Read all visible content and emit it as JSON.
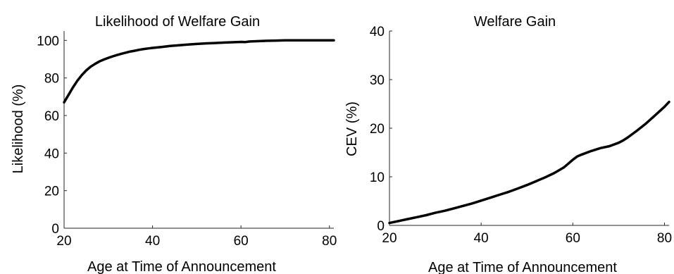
{
  "chart_data": [
    {
      "type": "line",
      "title": "Likelihood of Welfare Gain",
      "xlabel": "Age at Time of Announcement",
      "ylabel": "Likelihood (%)",
      "xlim": [
        20,
        81
      ],
      "ylim": [
        0,
        105
      ],
      "xticks": [
        20,
        40,
        60,
        80
      ],
      "yticks": [
        0,
        20,
        40,
        60,
        80,
        100
      ],
      "grid": false,
      "line_color": "#000000",
      "series": [
        {
          "x": [
            20,
            21,
            22,
            23,
            24,
            25,
            26,
            27,
            28,
            29,
            30,
            31,
            32,
            33,
            34,
            35,
            36,
            37,
            38,
            39,
            40,
            42,
            44,
            46,
            48,
            50,
            52,
            54,
            56,
            58,
            60,
            61,
            62,
            64,
            66,
            68,
            70,
            72,
            74,
            76,
            78,
            80,
            81
          ],
          "y": [
            67,
            71,
            75,
            78.5,
            81.5,
            84,
            86,
            87.5,
            88.8,
            89.8,
            90.7,
            91.5,
            92.2,
            92.9,
            93.5,
            94.1,
            94.5,
            95,
            95.4,
            95.7,
            96,
            96.5,
            97,
            97.4,
            97.8,
            98.1,
            98.4,
            98.6,
            98.8,
            99,
            99.2,
            99.1,
            99.4,
            99.6,
            99.8,
            99.9,
            100,
            100,
            100,
            100,
            100,
            100,
            100
          ]
        }
      ]
    },
    {
      "type": "line",
      "title": "Welfare Gain",
      "xlabel": "Age at Time of Announcement",
      "ylabel": "CEV (%)",
      "xlim": [
        20,
        81
      ],
      "ylim": [
        0,
        40
      ],
      "xticks": [
        20,
        40,
        60,
        80
      ],
      "yticks": [
        0,
        10,
        20,
        30,
        40
      ],
      "grid": false,
      "line_color": "#000000",
      "series": [
        {
          "x": [
            20,
            22,
            24,
            26,
            28,
            30,
            32,
            34,
            36,
            38,
            40,
            42,
            44,
            46,
            48,
            50,
            52,
            54,
            56,
            58,
            59,
            60,
            61,
            62,
            64,
            66,
            68,
            70,
            71,
            72,
            74,
            76,
            78,
            80,
            81
          ],
          "y": [
            0.5,
            0.9,
            1.3,
            1.7,
            2.1,
            2.6,
            3.0,
            3.5,
            4.0,
            4.5,
            5.1,
            5.7,
            6.3,
            6.9,
            7.6,
            8.3,
            9.1,
            9.9,
            10.8,
            11.9,
            12.7,
            13.5,
            14.2,
            14.6,
            15.3,
            15.9,
            16.3,
            17.0,
            17.5,
            18.1,
            19.5,
            21.0,
            22.7,
            24.4,
            25.4
          ]
        }
      ]
    }
  ]
}
